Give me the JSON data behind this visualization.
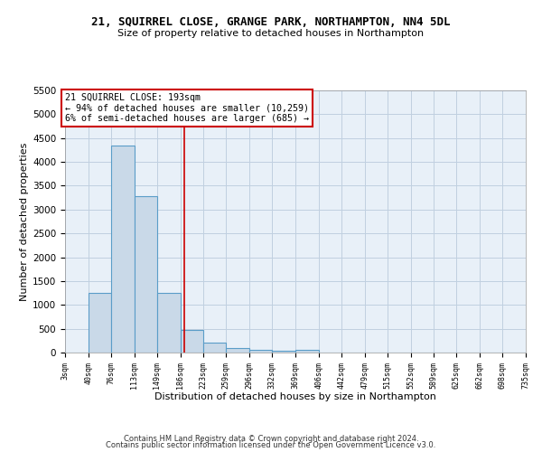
{
  "title1": "21, SQUIRREL CLOSE, GRANGE PARK, NORTHAMPTON, NN4 5DL",
  "title2": "Size of property relative to detached houses in Northampton",
  "xlabel": "Distribution of detached houses by size in Northampton",
  "ylabel": "Number of detached properties",
  "bin_edges": [
    3,
    40,
    76,
    113,
    149,
    186,
    223,
    259,
    296,
    332,
    369,
    406,
    442,
    479,
    515,
    552,
    589,
    625,
    662,
    698,
    735
  ],
  "bar_heights": [
    0,
    1250,
    4350,
    3280,
    1260,
    480,
    215,
    90,
    55,
    40,
    55,
    0,
    0,
    0,
    0,
    0,
    0,
    0,
    0,
    0
  ],
  "bar_color": "#c9d9e8",
  "bar_edge_color": "#5a9dc8",
  "grid_color": "#c0d0e0",
  "property_line_x": 193,
  "property_line_color": "#cc0000",
  "annotation_text": "21 SQUIRREL CLOSE: 193sqm\n← 94% of detached houses are smaller (10,259)\n6% of semi-detached houses are larger (685) →",
  "annotation_box_color": "#cc0000",
  "ylim": [
    0,
    5500
  ],
  "yticks": [
    0,
    500,
    1000,
    1500,
    2000,
    2500,
    3000,
    3500,
    4000,
    4500,
    5000,
    5500
  ],
  "bg_color": "#e8f0f8",
  "footnote1": "Contains HM Land Registry data © Crown copyright and database right 2024.",
  "footnote2": "Contains public sector information licensed under the Open Government Licence v3.0."
}
